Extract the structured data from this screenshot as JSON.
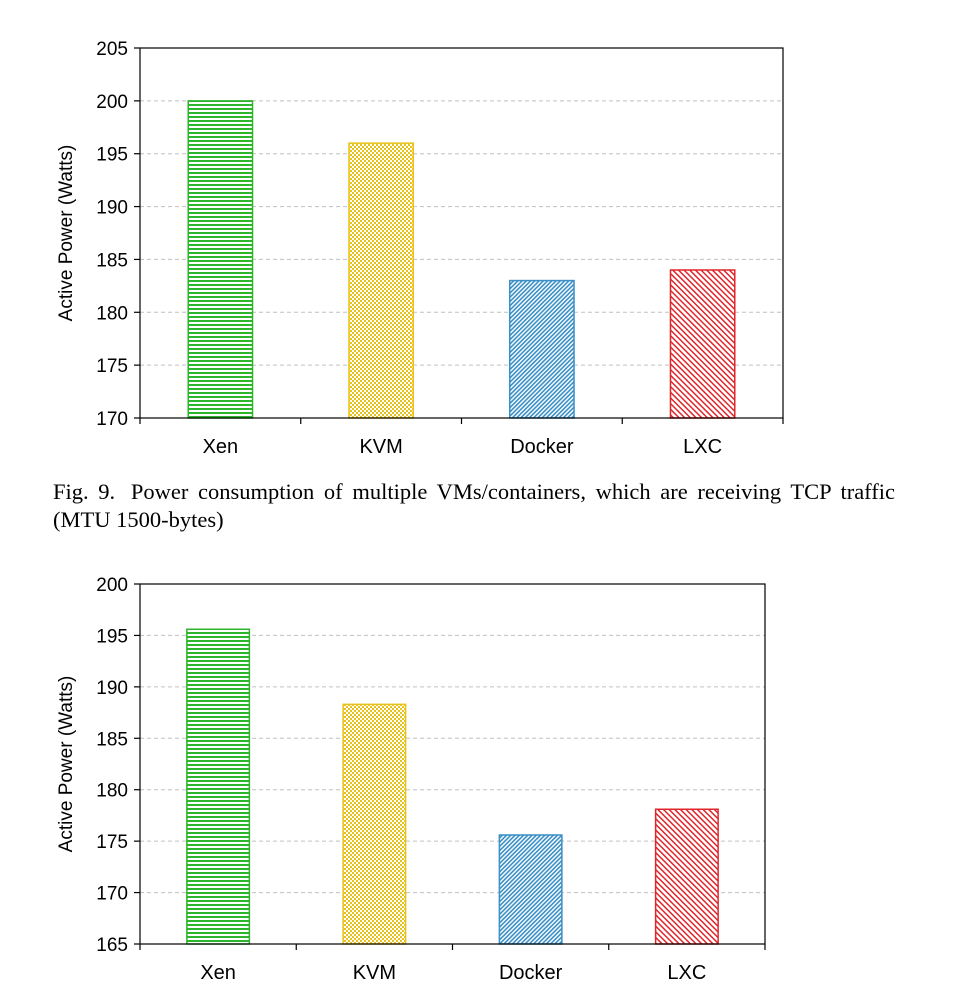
{
  "figure1": {
    "caption_label": "Fig. 9.",
    "caption_text": "Power consumption of multiple VMs/containers, which are receiving TCP traffic (MTU 1500-bytes)"
  },
  "chart_data": [
    {
      "type": "bar",
      "title": "",
      "xlabel": "",
      "ylabel": "Active Power (Watts)",
      "categories": [
        "Xen",
        "KVM",
        "Docker",
        "LXC"
      ],
      "values": [
        200,
        196,
        183,
        184
      ],
      "ylim": [
        170,
        205
      ],
      "yticks": [
        170,
        175,
        180,
        185,
        190,
        195,
        200,
        205
      ],
      "grid": true,
      "legend": "none",
      "colors": [
        "#2db52d",
        "#e8c21a",
        "#3a8fc6",
        "#e0262b"
      ],
      "patterns": [
        "horizontal-lines",
        "checker",
        "fine-diagonal",
        "diagonal-hatch"
      ]
    },
    {
      "type": "bar",
      "title": "",
      "xlabel": "",
      "ylabel": "Active Power (Watts)",
      "categories": [
        "Xen",
        "KVM",
        "Docker",
        "LXC"
      ],
      "values": [
        195.6,
        188.3,
        175.6,
        178.1
      ],
      "ylim": [
        165,
        200
      ],
      "yticks": [
        165,
        170,
        175,
        180,
        185,
        190,
        195,
        200
      ],
      "grid": true,
      "legend": "none",
      "colors": [
        "#2db52d",
        "#e8c21a",
        "#3a8fc6",
        "#e0262b"
      ],
      "patterns": [
        "horizontal-lines",
        "checker",
        "fine-diagonal",
        "diagonal-hatch"
      ]
    }
  ]
}
